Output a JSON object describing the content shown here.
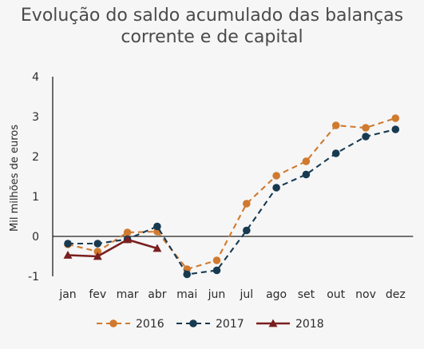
{
  "chart_data": {
    "type": "line",
    "title": "Evolução do saldo acumulado das balanças corrente e de capital",
    "title_lines": [
      "Evolução do saldo acumulado das balanças",
      "corrente e de capital"
    ],
    "xlabel": "",
    "ylabel": "Mil milhões de euros",
    "categories": [
      "jan",
      "fev",
      "mar",
      "abr",
      "mai",
      "jun",
      "jul",
      "ago",
      "set",
      "out",
      "nov",
      "dez"
    ],
    "ylim": [
      -1,
      4
    ],
    "yticks": [
      -1,
      0,
      1,
      2,
      3,
      4
    ],
    "grid": false,
    "legend_position": "bottom",
    "series": [
      {
        "name": "2016",
        "color": "#d07a2e",
        "marker": "circle",
        "line_style": "dashed",
        "values": [
          -0.2,
          -0.38,
          0.1,
          0.12,
          -0.82,
          -0.6,
          0.82,
          1.52,
          1.88,
          2.78,
          2.72,
          2.96
        ]
      },
      {
        "name": "2017",
        "color": "#173a51",
        "marker": "circle",
        "line_style": "dashed",
        "values": [
          -0.18,
          -0.18,
          -0.07,
          0.25,
          -0.95,
          -0.85,
          0.15,
          1.22,
          1.55,
          2.08,
          2.5,
          2.68
        ]
      },
      {
        "name": "2018",
        "color": "#7a1f1f",
        "marker": "triangle",
        "line_style": "solid",
        "values": [
          -0.47,
          -0.5,
          -0.08,
          -0.3,
          null,
          null,
          null,
          null,
          null,
          null,
          null,
          null
        ]
      }
    ]
  }
}
